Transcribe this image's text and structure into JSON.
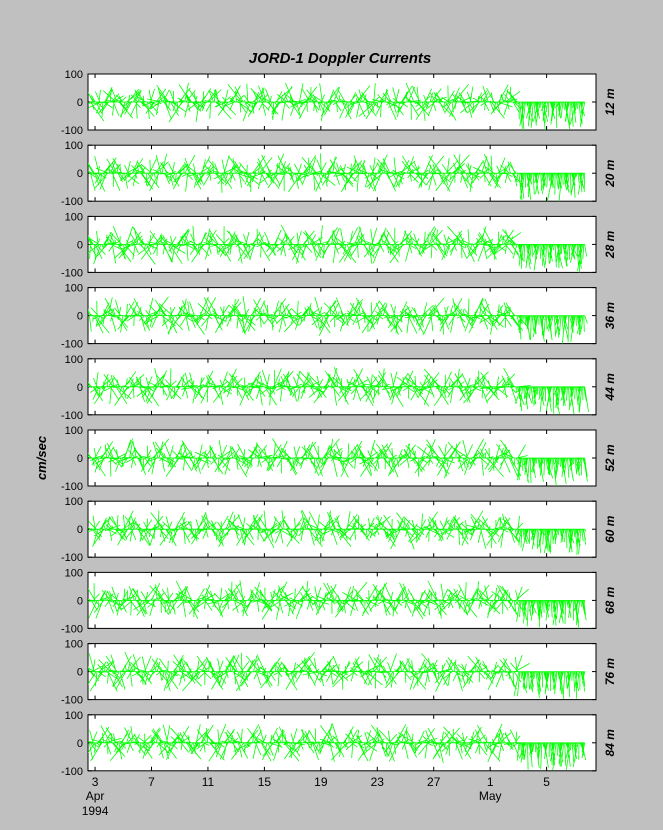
{
  "chart_data": {
    "type": "line",
    "subtype": "stick-plot (current vectors)",
    "title": "JORD-1   Doppler Currents",
    "ylabel": "cm/sec",
    "ylim": [
      -100,
      100
    ],
    "yticks": [
      100,
      0,
      -100
    ],
    "x_range_days": [
      "1994-04-02",
      "1994-05-07"
    ],
    "xticks": [
      {
        "label": "3",
        "sublabel": "Apr",
        "sublabel2": "1994",
        "day": 3
      },
      {
        "label": "7",
        "day": 7
      },
      {
        "label": "11",
        "day": 11
      },
      {
        "label": "15",
        "day": 15
      },
      {
        "label": "19",
        "day": 19
      },
      {
        "label": "23",
        "day": 23
      },
      {
        "label": "27",
        "day": 27
      },
      {
        "label": "1",
        "sublabel": "May",
        "day": 31
      },
      {
        "label": "5",
        "day": 35
      }
    ],
    "stick_color": "#00ff00",
    "panels": [
      {
        "depth": "12 m"
      },
      {
        "depth": "20 m"
      },
      {
        "depth": "28 m"
      },
      {
        "depth": "36 m"
      },
      {
        "depth": "44 m"
      },
      {
        "depth": "52 m"
      },
      {
        "depth": "60 m"
      },
      {
        "depth": "68 m"
      },
      {
        "depth": "76 m"
      },
      {
        "depth": "84 m"
      }
    ]
  }
}
